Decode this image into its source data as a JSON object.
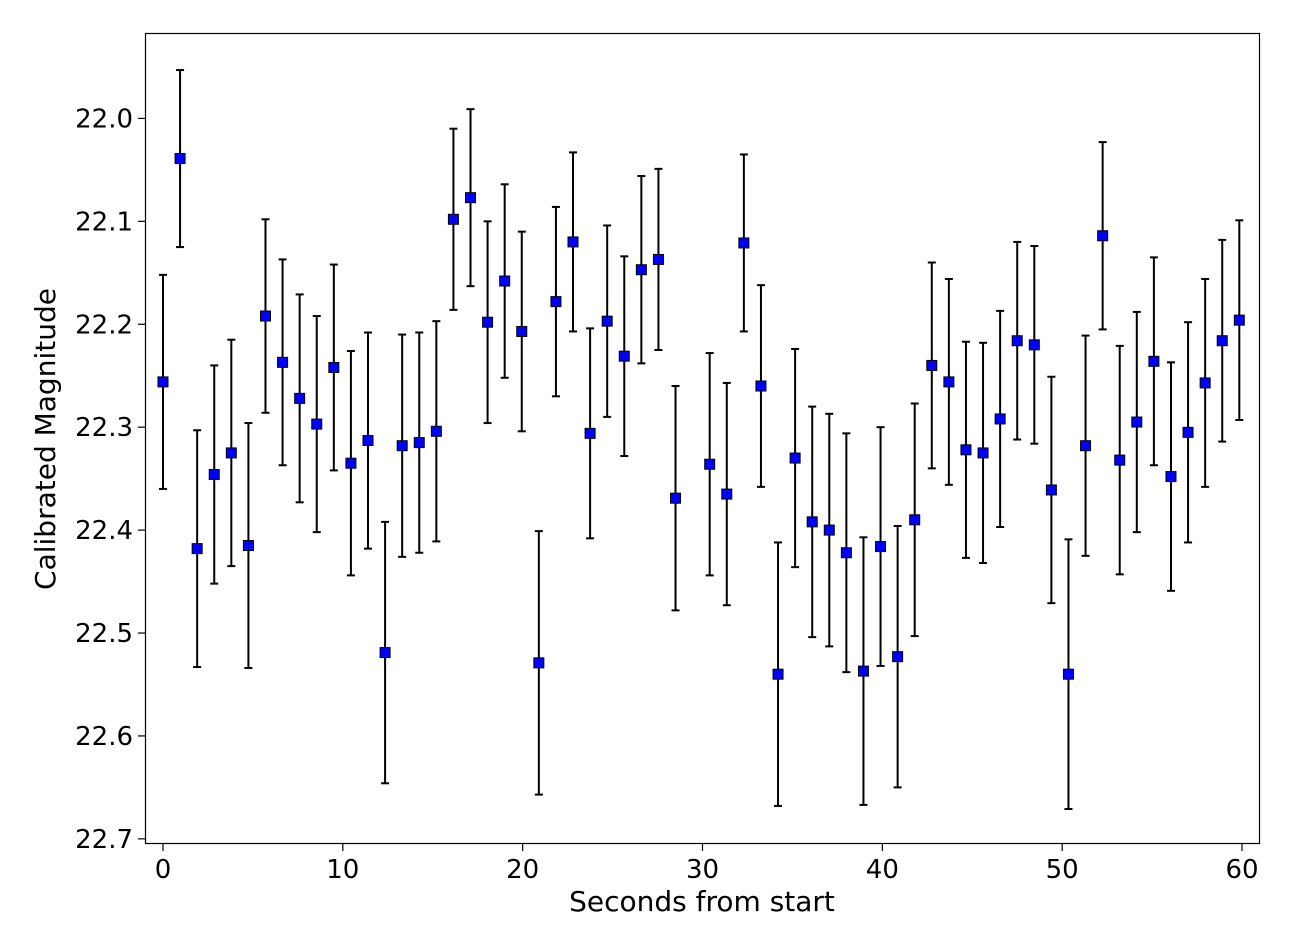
{
  "chart_data": {
    "type": "scatter",
    "xlabel": "Seconds from start",
    "ylabel": "Calibrated Magnitude",
    "xlim": [
      -1,
      61
    ],
    "ylim": [
      22.705,
      21.917
    ],
    "y_inverted": true,
    "grid": false,
    "marker": "square",
    "marker_color": "#0000ff",
    "errorbar_color": "#000000",
    "xticks": [
      0,
      10,
      20,
      30,
      40,
      50,
      60
    ],
    "xtick_labels": [
      "0",
      "10",
      "20",
      "30",
      "40",
      "50",
      "60"
    ],
    "yticks": [
      22.0,
      22.1,
      22.2,
      22.3,
      22.4,
      22.5,
      22.6,
      22.7
    ],
    "ytick_labels": [
      "22.0",
      "22.1",
      "22.2",
      "22.3",
      "22.4",
      "22.5",
      "22.6",
      "22.7"
    ],
    "series": [
      {
        "x": [
          0.0,
          0.95,
          1.9,
          2.85,
          3.8,
          4.75,
          5.7,
          6.65,
          7.6,
          8.55,
          9.5,
          10.45,
          11.4,
          12.35,
          13.3,
          14.25,
          15.2,
          16.15,
          17.1,
          18.05,
          19.0,
          19.95,
          20.9,
          21.85,
          22.8,
          23.75,
          24.7,
          25.65,
          26.6,
          27.55,
          28.5,
          30.4,
          31.35,
          32.3,
          33.25,
          34.2,
          35.15,
          36.1,
          37.05,
          38.0,
          38.95,
          39.9,
          40.85,
          41.8,
          42.75,
          43.7,
          44.65,
          45.6,
          46.55,
          47.5,
          48.45,
          49.4,
          50.35,
          51.3,
          52.25,
          53.2,
          54.15,
          55.1,
          56.05,
          57.0,
          57.95,
          58.9,
          59.85
        ],
        "y": [
          22.256,
          22.039,
          22.418,
          22.346,
          22.325,
          22.415,
          22.192,
          22.237,
          22.272,
          22.297,
          22.242,
          22.335,
          22.313,
          22.519,
          22.318,
          22.315,
          22.304,
          22.098,
          22.077,
          22.198,
          22.158,
          22.207,
          22.529,
          22.178,
          22.12,
          22.306,
          22.197,
          22.231,
          22.147,
          22.137,
          22.369,
          22.336,
          22.365,
          22.121,
          22.26,
          22.54,
          22.33,
          22.392,
          22.4,
          22.422,
          22.537,
          22.416,
          22.523,
          22.39,
          22.24,
          22.256,
          22.322,
          22.325,
          22.292,
          22.216,
          22.22,
          22.361,
          22.54,
          22.318,
          22.114,
          22.332,
          22.295,
          22.236,
          22.348,
          22.305,
          22.257,
          22.216,
          22.196
        ],
        "yerr": [
          0.104,
          0.086,
          0.115,
          0.106,
          0.11,
          0.119,
          0.094,
          0.1,
          0.101,
          0.105,
          0.1,
          0.109,
          0.105,
          0.127,
          0.108,
          0.107,
          0.107,
          0.088,
          0.086,
          0.098,
          0.094,
          0.097,
          0.128,
          0.092,
          0.087,
          0.102,
          0.093,
          0.097,
          0.091,
          0.088,
          0.109,
          0.108,
          0.108,
          0.086,
          0.098,
          0.128,
          0.106,
          0.112,
          0.113,
          0.116,
          0.13,
          0.116,
          0.127,
          0.113,
          0.1,
          0.1,
          0.105,
          0.107,
          0.105,
          0.096,
          0.096,
          0.11,
          0.131,
          0.107,
          0.091,
          0.111,
          0.107,
          0.101,
          0.111,
          0.107,
          0.101,
          0.098,
          0.097
        ]
      }
    ]
  }
}
